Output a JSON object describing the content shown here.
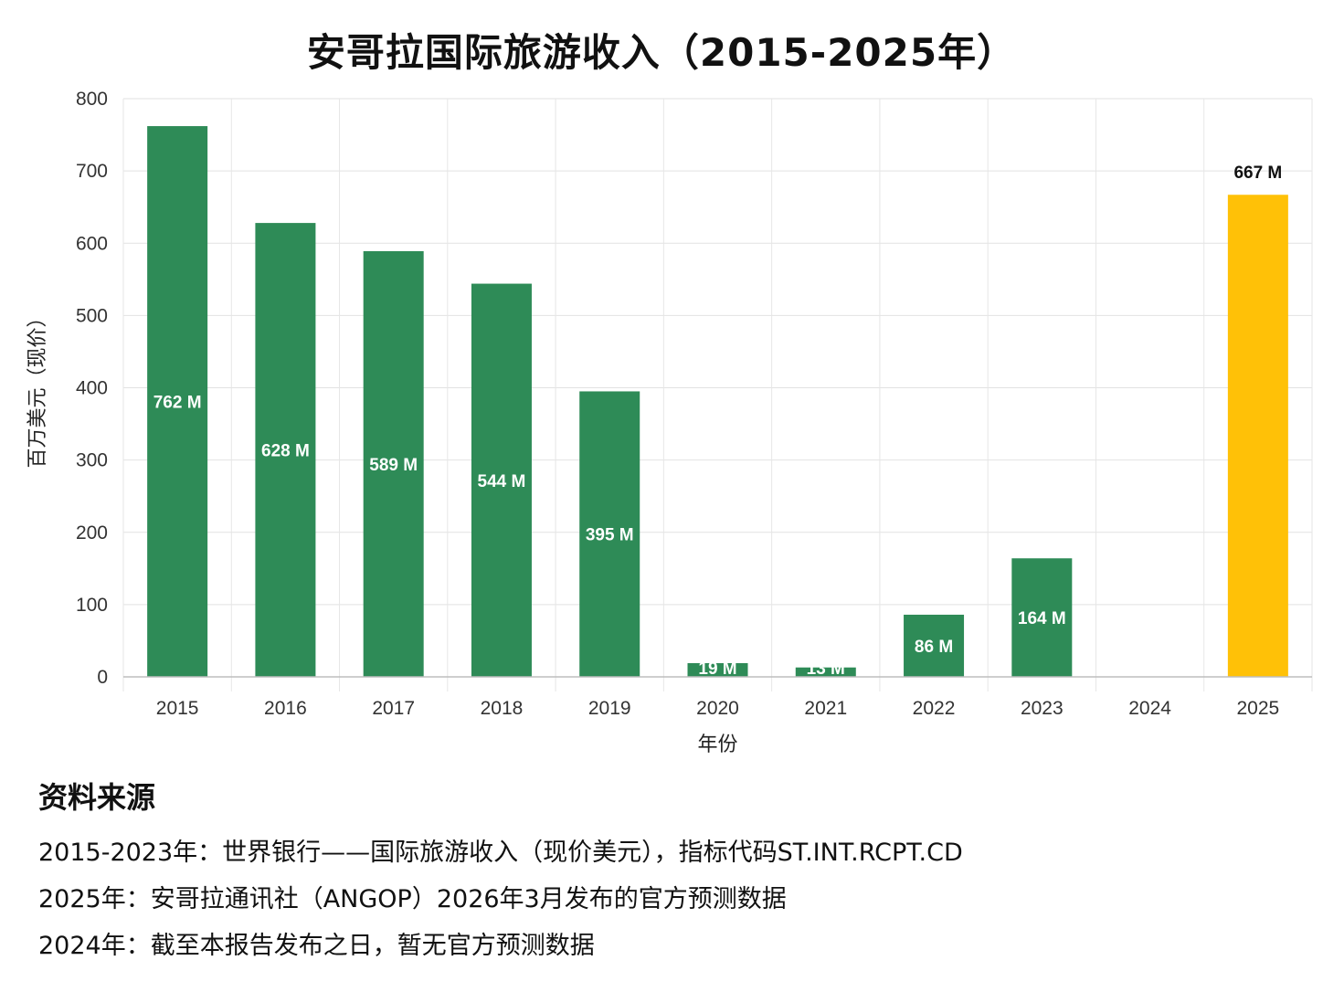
{
  "chart_data": {
    "type": "bar",
    "title": "安哥拉国际旅游收入（2015-2025年）",
    "xlabel": "年份",
    "ylabel": "百万美元（现价）",
    "ylim": [
      0,
      800
    ],
    "yticks": [
      0,
      100,
      200,
      300,
      400,
      500,
      600,
      700,
      800
    ],
    "categories": [
      "2015",
      "2016",
      "2017",
      "2018",
      "2019",
      "2020",
      "2021",
      "2022",
      "2023",
      "2024",
      "2025"
    ],
    "values": [
      762,
      628,
      589,
      544,
      395,
      19,
      13,
      86,
      164,
      null,
      667
    ],
    "data_labels": [
      "762 M",
      "628 M",
      "589 M",
      "544 M",
      "395 M",
      "19 M",
      "13 M",
      "86 M",
      "164 M",
      "",
      "667 M"
    ],
    "bar_colors": [
      "#2e8b57",
      "#2e8b57",
      "#2e8b57",
      "#2e8b57",
      "#2e8b57",
      "#2e8b57",
      "#2e8b57",
      "#2e8b57",
      "#2e8b57",
      "#2e8b57",
      "#ffc107"
    ],
    "grid": true,
    "legend": false
  },
  "sources": {
    "title": "资料来源",
    "lines": [
      "2015-2023年：世界银行——国际旅游收入（现价美元），指标代码ST.INT.RCPT.CD",
      "2025年：安哥拉通讯社（ANGOP）2026年3月发布的官方预测数据",
      "2024年：截至本报告发布之日，暂无官方预测数据"
    ]
  }
}
